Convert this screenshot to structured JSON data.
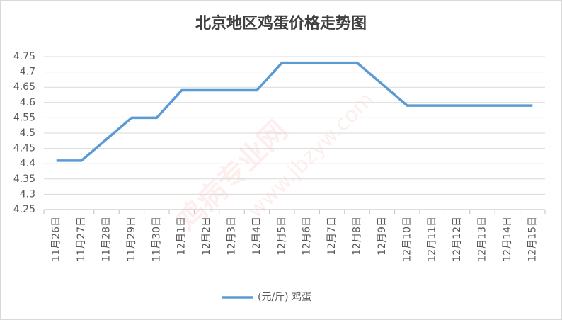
{
  "chart_data": {
    "type": "line",
    "title": "北京地区鸡蛋价格走势图",
    "categories": [
      "11月26日",
      "11月27日",
      "11月28日",
      "11月29日",
      "11月30日",
      "12月1日",
      "12月2日",
      "12月3日",
      "12月4日",
      "12月5日",
      "12月6日",
      "12月7日",
      "12月8日",
      "12月9日",
      "12月10日",
      "12月11日",
      "12月12日",
      "12月13日",
      "12月14日",
      "12月15日"
    ],
    "series": [
      {
        "name": "(元/斤) 鸡蛋",
        "color": "#5b9bd5",
        "values": [
          4.41,
          4.41,
          4.48,
          4.55,
          4.55,
          4.64,
          4.64,
          4.64,
          4.64,
          4.73,
          4.73,
          4.73,
          4.73,
          4.66,
          4.59,
          4.59,
          4.59,
          4.59,
          4.59,
          4.59
        ]
      }
    ],
    "ylim": [
      4.25,
      4.75
    ],
    "yticks": [
      4.25,
      4.3,
      4.35,
      4.4,
      4.45,
      4.5,
      4.55,
      4.6,
      4.65,
      4.7,
      4.75
    ],
    "grid": true,
    "legend": "bottom",
    "watermark": [
      "鸡病专业网",
      "www.jbzyw.com"
    ]
  }
}
